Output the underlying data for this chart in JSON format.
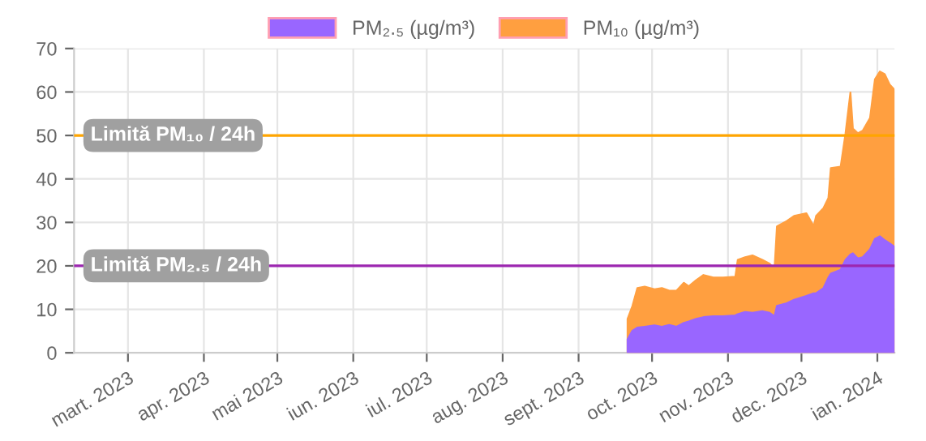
{
  "chart_data": {
    "type": "area",
    "x": [
      "2023-09-21",
      "2023-09-23",
      "2023-09-25",
      "2023-09-28",
      "2023-10-02",
      "2023-10-05",
      "2023-10-08",
      "2023-10-11",
      "2023-10-14",
      "2023-10-16",
      "2023-10-19",
      "2023-10-22",
      "2023-10-26",
      "2023-10-30",
      "2023-11-04",
      "2023-11-05",
      "2023-11-08",
      "2023-11-11",
      "2023-11-15",
      "2023-11-18",
      "2023-11-20",
      "2023-11-21",
      "2023-11-25",
      "2023-11-28",
      "2023-12-03",
      "2023-12-06",
      "2023-12-07",
      "2023-12-10",
      "2023-12-12",
      "2023-12-13",
      "2023-12-17",
      "2023-12-19",
      "2023-12-21",
      "2023-12-22",
      "2023-12-24",
      "2023-12-26",
      "2023-12-29",
      "2023-12-31",
      "2024-01-02",
      "2024-01-04",
      "2024-01-06",
      "2024-01-08"
    ],
    "series": [
      {
        "name": "PM₂.₅ (µg/m³)",
        "color": "#9966ff",
        "values": [
          3.1,
          5.1,
          5.8,
          6.0,
          6.3,
          6.0,
          6.4,
          6.0,
          6.9,
          7.2,
          7.8,
          8.2,
          8.4,
          8.4,
          8.6,
          8.9,
          9.4,
          9.2,
          9.6,
          9.2,
          8.4,
          10.8,
          11.4,
          12.2,
          13.1,
          13.7,
          13.7,
          14.9,
          17.3,
          18.2,
          19.1,
          21.4,
          22.6,
          22.9,
          21.7,
          22.0,
          23.8,
          26.2,
          26.8,
          25.9,
          25.2,
          24.4
        ]
      },
      {
        "name": "PM₁₀ (µg/m³)",
        "color": "#ff9f40",
        "values": [
          7.8,
          10.8,
          14.9,
          15.2,
          14.6,
          14.9,
          14.3,
          14.3,
          16.1,
          15.3,
          16.7,
          17.9,
          17.3,
          17.3,
          17.5,
          21.4,
          22.0,
          22.4,
          21.4,
          20.5,
          19.3,
          29.1,
          30.3,
          31.5,
          32.1,
          29.1,
          31.5,
          33.3,
          35.6,
          42.5,
          42.8,
          50.5,
          59.9,
          51.6,
          50.5,
          51.1,
          54.0,
          62.9,
          64.7,
          64.1,
          61.7,
          60.5
        ]
      }
    ],
    "xlim": [
      "2023-02-07",
      "2024-01-08"
    ],
    "xticks": [
      {
        "value": "2023-03-01",
        "label": "mart. 2023"
      },
      {
        "value": "2023-04-01",
        "label": "apr. 2023"
      },
      {
        "value": "2023-05-01",
        "label": "mai 2023"
      },
      {
        "value": "2023-06-01",
        "label": "iun. 2023"
      },
      {
        "value": "2023-07-01",
        "label": "iul. 2023"
      },
      {
        "value": "2023-08-01",
        "label": "aug. 2023"
      },
      {
        "value": "2023-09-01",
        "label": "sept. 2023"
      },
      {
        "value": "2023-10-01",
        "label": "oct. 2023"
      },
      {
        "value": "2023-11-01",
        "label": "nov. 2023"
      },
      {
        "value": "2023-12-01",
        "label": "dec. 2023"
      },
      {
        "value": "2024-01-01",
        "label": "ian. 2024"
      }
    ],
    "ylim": [
      0,
      70
    ],
    "yticks": [
      0,
      10,
      20,
      30,
      40,
      50,
      60,
      70
    ],
    "ref_lines": [
      {
        "axis": "y",
        "value": 50,
        "label": "Limită PM₁₀ / 24h",
        "color": "#ffa500"
      },
      {
        "axis": "y",
        "value": 20,
        "label": "Limită PM₂.₅ / 24h",
        "color": "#9c27b0"
      }
    ],
    "grid": true,
    "legend": "top"
  }
}
